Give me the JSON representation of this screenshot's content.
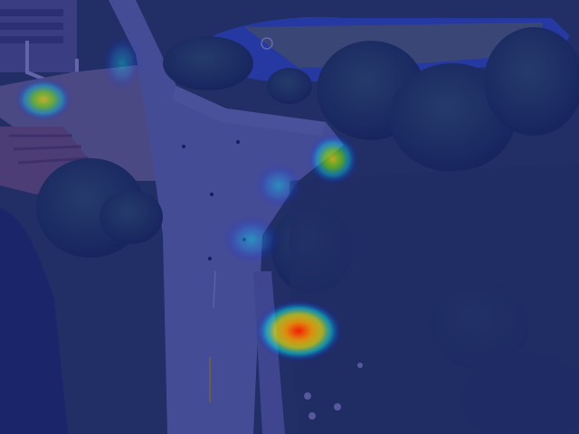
{
  "image": {
    "kind": "aerial photograph with attention heatmap overlay",
    "overlay_tint": "#1a1f8a",
    "heatmap_colors": [
      "#0000ff",
      "#00ffff",
      "#ffff00",
      "#ff0000"
    ]
  },
  "heatmap": {
    "hotspots": [
      {
        "name": "hotspot-lower-center",
        "intensity": 1.0
      },
      {
        "name": "hotspot-upper-right-crossing",
        "intensity": 0.65
      },
      {
        "name": "hotspot-top-left-construction",
        "intensity": 0.6
      },
      {
        "name": "hotspot-path-mid",
        "intensity": 0.45
      },
      {
        "name": "hotspot-road-upper-mid",
        "intensity": 0.4
      },
      {
        "name": "hotspot-top-left-path",
        "intensity": 0.3
      }
    ]
  }
}
